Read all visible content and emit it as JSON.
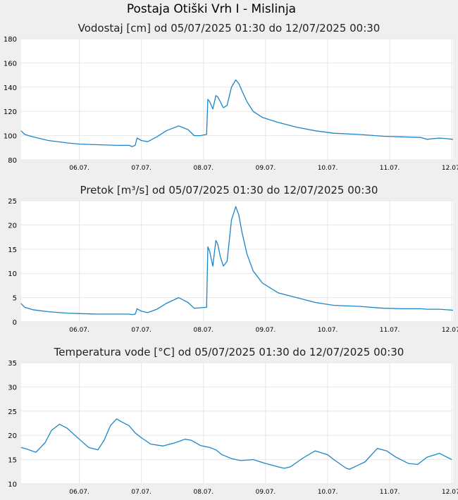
{
  "page": {
    "title": "Postaja Otiški Vrh I - Mislinja"
  },
  "colors": {
    "line": "#1a86c8",
    "plot_bg": "#ffffff",
    "grid": "#e6e6e6",
    "page_bg": "#efefef"
  },
  "chart_data": [
    {
      "type": "line",
      "title": "Vodostaj [cm] od 05/07/2025 01:30 do 12/07/2025 00:30",
      "xlabel": "",
      "ylabel": "",
      "x_range_days": [
        5.0625,
        12.02
      ],
      "xticks": [
        {
          "day": 6,
          "label": "06.07."
        },
        {
          "day": 7,
          "label": "07.07."
        },
        {
          "day": 8,
          "label": "08.07."
        },
        {
          "day": 9,
          "label": "09.07."
        },
        {
          "day": 10,
          "label": "10.07."
        },
        {
          "day": 11,
          "label": "11.07."
        },
        {
          "day": 12,
          "label": "12.07."
        }
      ],
      "ylim": [
        80,
        180
      ],
      "yticks": [
        80,
        100,
        120,
        140,
        160,
        180
      ],
      "grid": true,
      "x": [
        5.06,
        5.12,
        5.25,
        5.5,
        5.8,
        6.0,
        6.3,
        6.6,
        6.8,
        6.85,
        6.9,
        6.93,
        7.0,
        7.1,
        7.25,
        7.4,
        7.6,
        7.75,
        7.85,
        7.95,
        8.05,
        8.07,
        8.1,
        8.15,
        8.2,
        8.23,
        8.27,
        8.32,
        8.38,
        8.45,
        8.52,
        8.57,
        8.62,
        8.7,
        8.8,
        8.95,
        9.2,
        9.5,
        9.8,
        10.1,
        10.5,
        10.9,
        11.2,
        11.5,
        11.6,
        11.8,
        12.02
      ],
      "series": [
        {
          "values": [
            104,
            101,
            99,
            96,
            94,
            93,
            92.5,
            92,
            92,
            91,
            92,
            98,
            96,
            95,
            99,
            104,
            108,
            105,
            100,
            100,
            101,
            130,
            128,
            122,
            133,
            132,
            128,
            123,
            125,
            140,
            146,
            143,
            137,
            128,
            120,
            115,
            111,
            107,
            104,
            102,
            101,
            99.5,
            99,
            98.5,
            97,
            98,
            97
          ]
        }
      ]
    },
    {
      "type": "line",
      "title": "Pretok [m³/s] od 05/07/2025 01:30 do 12/07/2025 00:30",
      "xlabel": "",
      "ylabel": "",
      "x_range_days": [
        5.0625,
        12.02
      ],
      "xticks": [
        {
          "day": 6,
          "label": "06.07."
        },
        {
          "day": 7,
          "label": "07.07."
        },
        {
          "day": 8,
          "label": "08.07."
        },
        {
          "day": 9,
          "label": "09.07."
        },
        {
          "day": 10,
          "label": "10.07."
        },
        {
          "day": 11,
          "label": "11.07."
        },
        {
          "day": 12,
          "label": "12.07."
        }
      ],
      "ylim": [
        0,
        25
      ],
      "yticks": [
        0,
        5,
        10,
        15,
        20,
        25
      ],
      "grid": true,
      "x": [
        5.06,
        5.12,
        5.25,
        5.5,
        5.8,
        6.0,
        6.3,
        6.6,
        6.8,
        6.85,
        6.9,
        6.93,
        7.0,
        7.1,
        7.25,
        7.4,
        7.6,
        7.75,
        7.85,
        7.95,
        8.05,
        8.07,
        8.1,
        8.15,
        8.2,
        8.23,
        8.27,
        8.32,
        8.38,
        8.45,
        8.52,
        8.57,
        8.62,
        8.7,
        8.8,
        8.95,
        9.2,
        9.5,
        9.8,
        10.1,
        10.5,
        10.9,
        11.2,
        11.5,
        11.6,
        11.8,
        12.02
      ],
      "series": [
        {
          "values": [
            3.8,
            3.0,
            2.5,
            2.1,
            1.8,
            1.7,
            1.6,
            1.6,
            1.6,
            1.5,
            1.6,
            2.7,
            2.2,
            1.9,
            2.6,
            3.8,
            5.0,
            4.0,
            2.8,
            2.9,
            3.0,
            15.5,
            14.5,
            11.5,
            16.8,
            16.0,
            13.5,
            11.5,
            12.5,
            21.0,
            23.8,
            22.0,
            18.5,
            14.0,
            10.5,
            8.0,
            6.0,
            5.0,
            4.0,
            3.4,
            3.2,
            2.8,
            2.7,
            2.7,
            2.6,
            2.6,
            2.4
          ]
        }
      ]
    },
    {
      "type": "line",
      "title": "Temperatura vode [°C] od 05/07/2025 01:30 do 12/07/2025 00:30",
      "xlabel": "",
      "ylabel": "",
      "x_range_days": [
        5.0625,
        12.02
      ],
      "xticks": [
        {
          "day": 6,
          "label": "06.07."
        },
        {
          "day": 7,
          "label": "07.07."
        },
        {
          "day": 8,
          "label": "08.07."
        },
        {
          "day": 9,
          "label": "09.07."
        },
        {
          "day": 10,
          "label": "10.07."
        },
        {
          "day": 11,
          "label": "11.07."
        },
        {
          "day": 12,
          "label": "12.07."
        }
      ],
      "ylim": [
        10,
        35
      ],
      "yticks": [
        10,
        15,
        20,
        25,
        30,
        35
      ],
      "grid": true,
      "x": [
        5.06,
        5.15,
        5.3,
        5.45,
        5.55,
        5.68,
        5.8,
        6.0,
        6.15,
        6.3,
        6.4,
        6.5,
        6.6,
        6.68,
        6.8,
        6.9,
        7.0,
        7.15,
        7.35,
        7.55,
        7.7,
        7.8,
        7.95,
        8.1,
        8.2,
        8.3,
        8.45,
        8.6,
        8.8,
        9.0,
        9.2,
        9.3,
        9.4,
        9.6,
        9.8,
        10.0,
        10.1,
        10.3,
        10.35,
        10.6,
        10.8,
        10.95,
        11.1,
        11.3,
        11.45,
        11.6,
        11.8,
        12.0
      ],
      "series": [
        {
          "values": [
            17.5,
            17.2,
            16.5,
            18.5,
            21.0,
            22.3,
            21.5,
            19.2,
            17.5,
            17.0,
            19.0,
            22.0,
            23.4,
            22.8,
            22.0,
            20.5,
            19.5,
            18.2,
            17.8,
            18.5,
            19.2,
            19.0,
            17.9,
            17.5,
            17.0,
            16.0,
            15.2,
            14.8,
            15.0,
            14.2,
            13.5,
            13.2,
            13.5,
            15.3,
            16.8,
            16.0,
            15.0,
            13.2,
            13.0,
            14.5,
            17.3,
            16.8,
            15.5,
            14.2,
            14.0,
            15.5,
            16.3,
            15.0
          ]
        }
      ]
    }
  ]
}
